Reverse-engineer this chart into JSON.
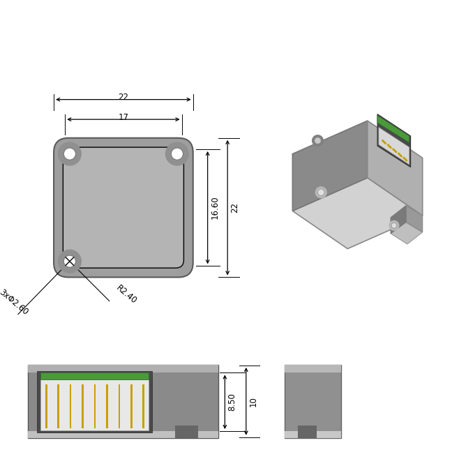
{
  "bg_color": "#ffffff",
  "dim_color": "#000000",
  "body_gray": "#999999",
  "body_mid": "#888888",
  "body_dark": "#666666",
  "body_light": "#cccccc",
  "body_lighter": "#e0e0e0",
  "top_face": "#d8d8d8",
  "left_face": "#909090",
  "right_face": "#b4b4b4",
  "green_color": "#4a9a3a",
  "gold_color": "#c8a000",
  "white_conn": "#e0e0e0",
  "dim_8_50": "8.50",
  "dim_10": "10",
  "dim_16_60": "16.60",
  "dim_22_v": "22",
  "dim_17": "17",
  "dim_22_h": "22",
  "hole_label": "3xΦ2.60",
  "radius_label": "R2.40"
}
